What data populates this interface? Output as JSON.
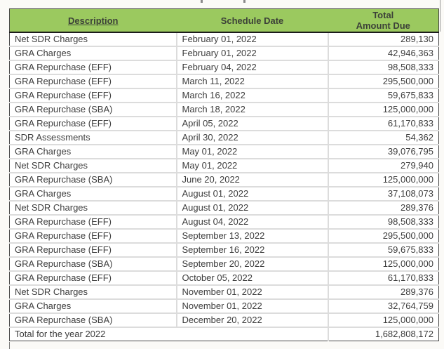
{
  "table": {
    "header": {
      "description": "Description",
      "schedule_date": "Schedule Date",
      "total_line1": "Total",
      "total_line2": "Amount Due"
    },
    "rows": [
      {
        "description": "Net SDR Charges",
        "date": "February 01, 2022",
        "amount": "289,130"
      },
      {
        "description": "GRA Charges",
        "date": "February 01, 2022",
        "amount": "42,946,363"
      },
      {
        "description": "GRA Repurchase (EFF)",
        "date": "February 04, 2022",
        "amount": "98,508,333"
      },
      {
        "description": "GRA Repurchase (EFF)",
        "date": "March 11, 2022",
        "amount": "295,500,000"
      },
      {
        "description": "GRA Repurchase (EFF)",
        "date": "March 16, 2022",
        "amount": "59,675,833"
      },
      {
        "description": "GRA Repurchase (SBA)",
        "date": "March 18, 2022",
        "amount": "125,000,000"
      },
      {
        "description": "GRA Repurchase (EFF)",
        "date": "April 05, 2022",
        "amount": "61,170,833"
      },
      {
        "description": "SDR Assessments",
        "date": "April 30, 2022",
        "amount": "54,362"
      },
      {
        "description": "GRA Charges",
        "date": "May 01, 2022",
        "amount": "39,076,795"
      },
      {
        "description": "Net SDR Charges",
        "date": "May 01, 2022",
        "amount": "279,940"
      },
      {
        "description": "GRA Repurchase (SBA)",
        "date": "June 20, 2022",
        "amount": "125,000,000"
      },
      {
        "description": "GRA Charges",
        "date": "August 01, 2022",
        "amount": "37,108,073",
        "stray_dot": true
      },
      {
        "description": "Net SDR Charges",
        "date": "August 01, 2022",
        "amount": "289,376"
      },
      {
        "description": "GRA Repurchase (EFF)",
        "date": "August 04, 2022",
        "amount": "98,508,333"
      },
      {
        "description": "GRA Repurchase (EFF)",
        "date": "September 13, 2022",
        "amount": "295,500,000"
      },
      {
        "description": "GRA Repurchase (EFF)",
        "date": "September 16, 2022",
        "amount": "59,675,833"
      },
      {
        "description": "GRA Repurchase (SBA)",
        "date": "September 20, 2022",
        "amount": "125,000,000"
      },
      {
        "description": "GRA Repurchase (EFF)",
        "date": "October 05, 2022",
        "amount": "61,170,833"
      },
      {
        "description": "Net SDR Charges",
        "date": "November 01, 2022",
        "amount": "289,376"
      },
      {
        "description": "GRA Charges",
        "date": "November 01, 2022",
        "amount": "32,764,759"
      },
      {
        "description": "GRA Repurchase (SBA)",
        "date": "December 20, 2022",
        "amount": "125,000,000"
      }
    ],
    "total_row": {
      "label": "Total for the year 2022",
      "amount": "1,682,808,172"
    },
    "colors": {
      "header_bg": "#9bc95f",
      "header_text": "#3c4138",
      "cell_text": "#3d3d3d",
      "grid_line": "#dcdcdc",
      "outer_border": "#4a4a4a"
    }
  }
}
